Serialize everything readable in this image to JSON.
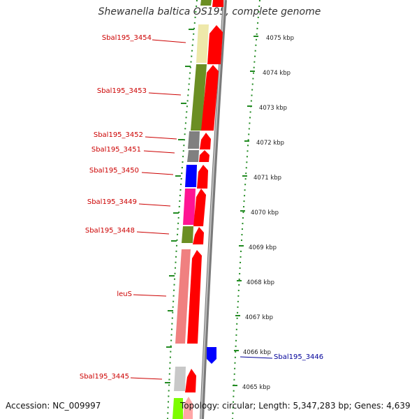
{
  "title": "Shewanella baltica OS195, complete genome",
  "footer": {
    "accession": "Accession: NC_009997",
    "summary": "Topology: circular; Length: 5,347,283 bp; Genes: 4,639"
  },
  "colors": {
    "label_red": "#cc0000",
    "label_blue": "#000099",
    "tick_green": "#228B22",
    "backbone": "#888888",
    "cds_arrow": "#ff0000",
    "gene_olive": "#6b8e23",
    "gene_khaki": "#eee8aa",
    "gene_gray": "#808080",
    "gene_blue": "#0000ff",
    "gene_magenta": "#ff1493",
    "gene_pink": "#f08080",
    "gene_lightgray": "#c8c8c8",
    "gene_lime": "#7cfc00"
  },
  "scale_ticks": [
    "4075 kbp",
    "4074 kbp",
    "4073 kbp",
    "4072 kbp",
    "4071 kbp",
    "4070 kbp",
    "4069 kbp",
    "4068 kbp",
    "4067 kbp",
    "4066 kbp",
    "4065 kbp"
  ],
  "gene_labels": [
    "Sbal195_3454",
    "Sbal195_3453",
    "Sbal195_3452",
    "Sbal195_3451",
    "Sbal195_3450",
    "Sbal195_3449",
    "Sbal195_3448",
    "leuS",
    "Sbal195_3445",
    "Sbal195_3446"
  ]
}
